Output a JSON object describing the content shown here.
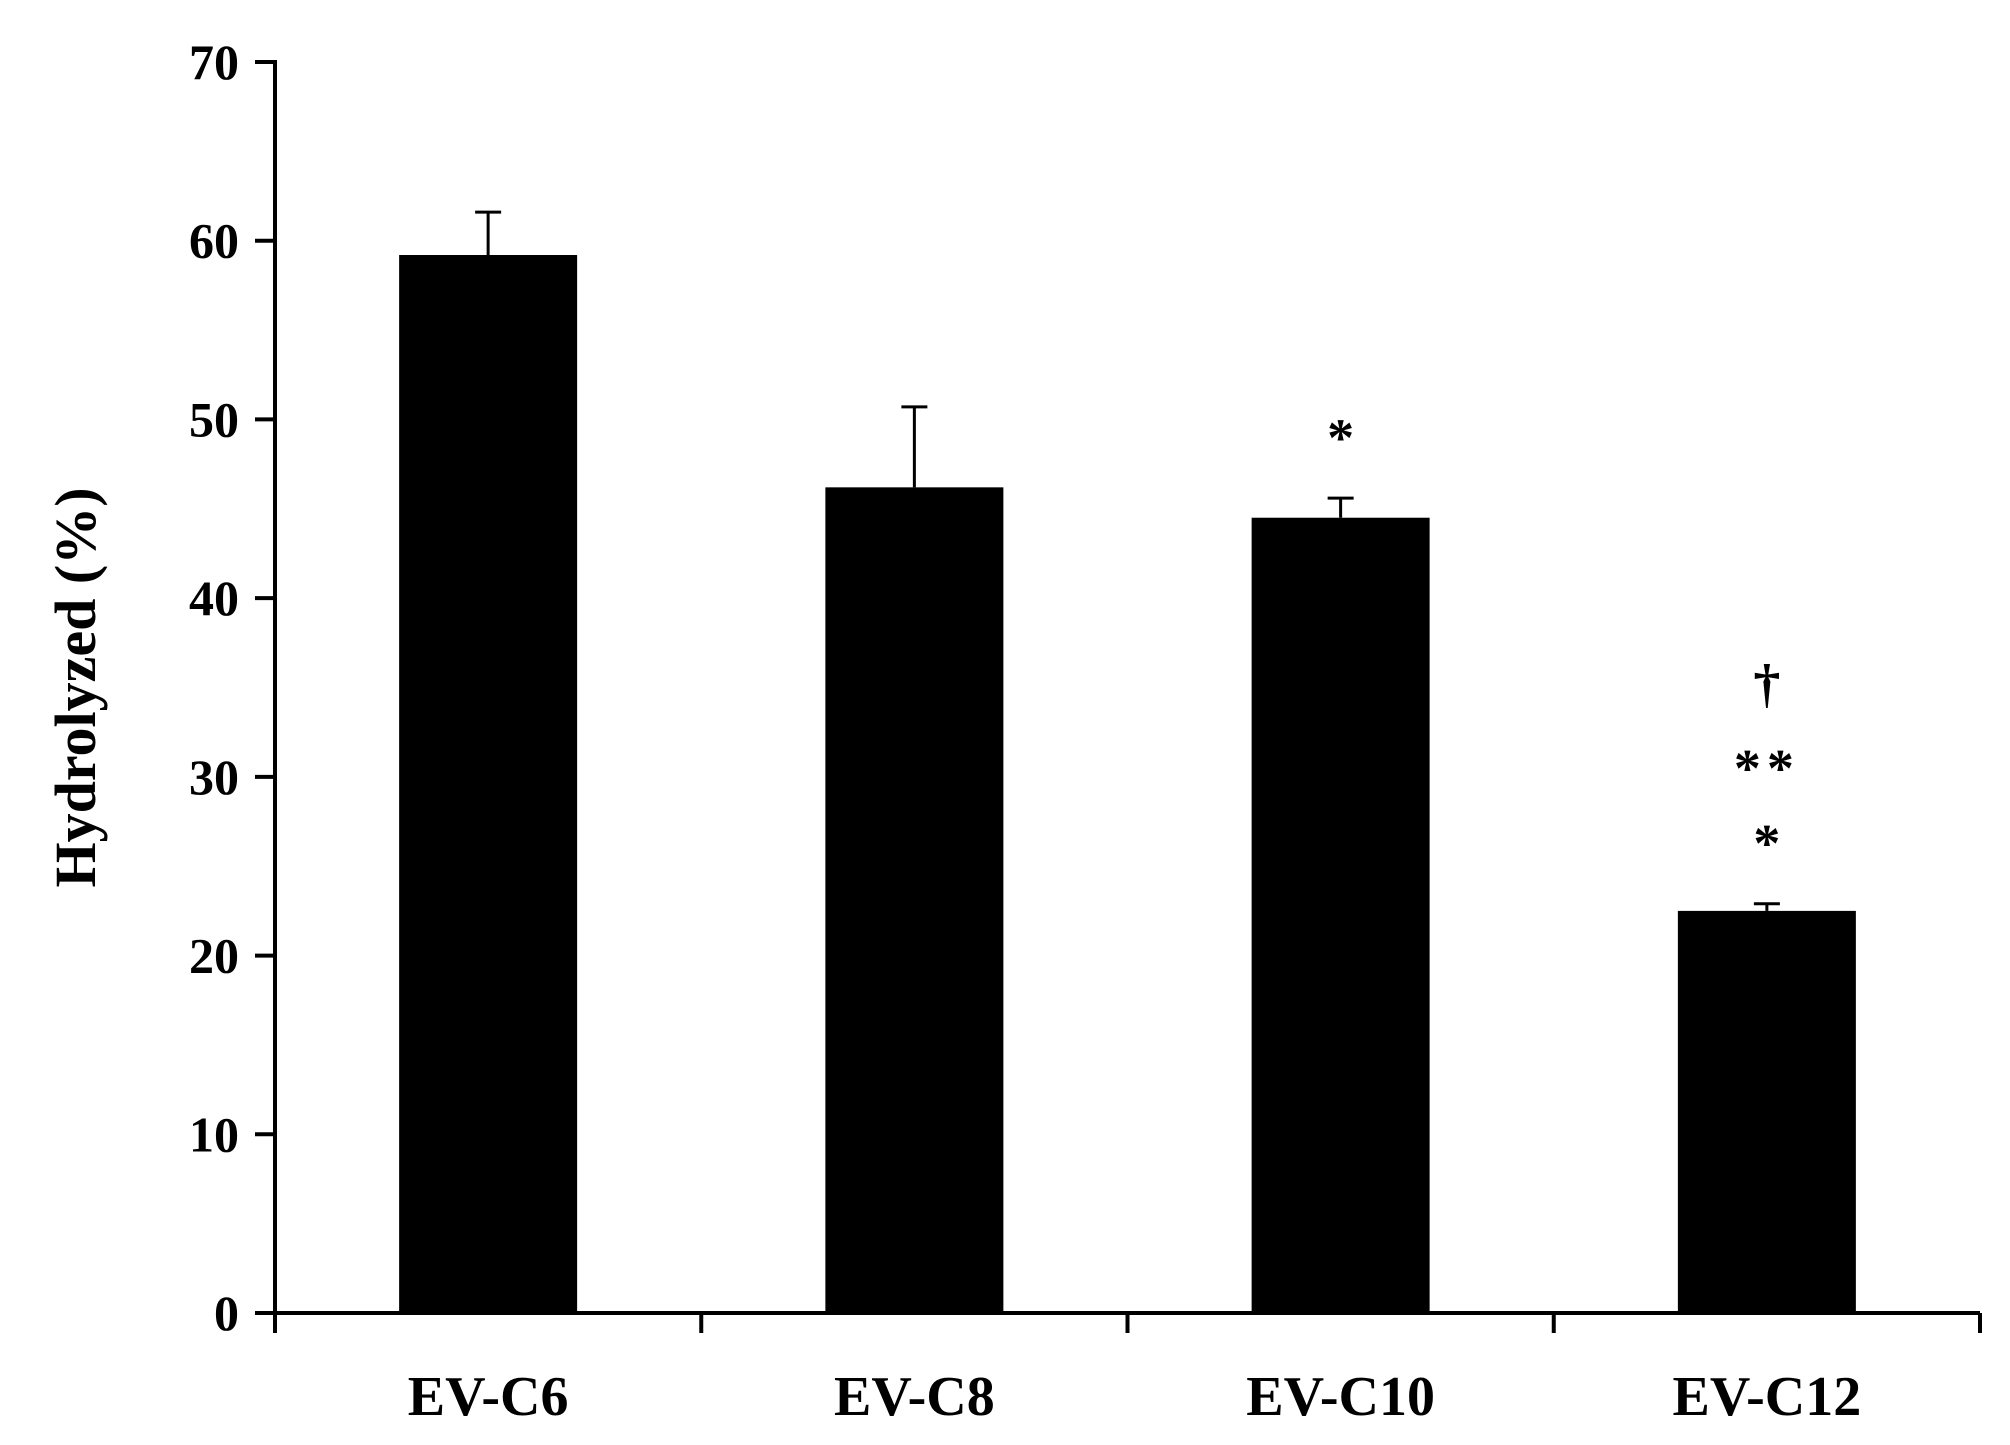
{
  "chart_data": {
    "type": "bar",
    "title": "",
    "xlabel": "",
    "ylabel": "Hydrolyzed (%)",
    "ylim": [
      0,
      70
    ],
    "yticks": [
      0,
      10,
      20,
      30,
      40,
      50,
      60,
      70
    ],
    "categories": [
      "EV-C6",
      "EV-C8",
      "EV-C10",
      "EV-C12"
    ],
    "values": [
      59.2,
      46.2,
      44.5,
      22.5
    ],
    "errors": [
      2.4,
      4.5,
      1.1,
      0.4
    ],
    "annotations": [
      {
        "category": "EV-C10",
        "lines": [
          "*"
        ]
      },
      {
        "category": "EV-C12",
        "lines": [
          "†",
          "**",
          "*"
        ]
      }
    ],
    "bar_color": "#000000",
    "grid": false,
    "legend": "none"
  }
}
